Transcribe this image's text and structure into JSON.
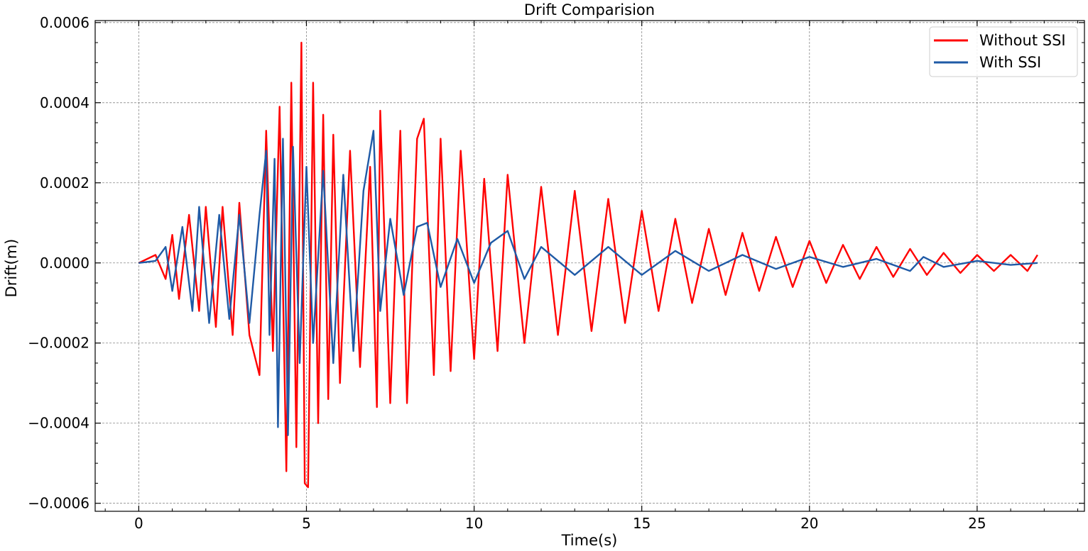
{
  "chart_data": {
    "type": "line",
    "title": "Drift Comparision",
    "xlabel": "Time(s)",
    "ylabel": "Drift(m)",
    "xlim": [
      -1.3,
      28.2
    ],
    "ylim": [
      -0.00062,
      0.000605
    ],
    "xticks": [
      0,
      5,
      10,
      15,
      20,
      25
    ],
    "xtick_labels": [
      "0",
      "5",
      "10",
      "15",
      "20",
      "25"
    ],
    "yticks": [
      0.0006,
      0.0004,
      0.0002,
      0.0,
      -0.0002,
      -0.0004,
      -0.0006
    ],
    "ytick_labels": [
      "0.0006",
      "0.0004",
      "0.0002",
      "0.0000",
      "−0.0002",
      "−0.0004",
      "−0.0006"
    ],
    "grid": true,
    "legend_position": "top-right",
    "series": [
      {
        "name": "Without SSI",
        "color": "#ff0000",
        "x": [
          0,
          0.5,
          0.8,
          1.0,
          1.2,
          1.5,
          1.8,
          2.0,
          2.3,
          2.5,
          2.8,
          3.0,
          3.3,
          3.6,
          3.8,
          4.0,
          4.2,
          4.4,
          4.55,
          4.7,
          4.85,
          4.95,
          5.05,
          5.2,
          5.35,
          5.5,
          5.65,
          5.8,
          6.0,
          6.3,
          6.6,
          6.9,
          7.1,
          7.2,
          7.5,
          7.8,
          8.0,
          8.3,
          8.5,
          8.8,
          9.0,
          9.3,
          9.6,
          10.0,
          10.3,
          10.7,
          11.0,
          11.5,
          12.0,
          12.5,
          13.0,
          13.5,
          14.0,
          14.5,
          15.0,
          15.5,
          16.0,
          16.5,
          17.0,
          17.5,
          18.0,
          18.5,
          19.0,
          19.5,
          20.0,
          20.5,
          21.0,
          21.5,
          22.0,
          22.5,
          23.0,
          23.5,
          24.0,
          24.5,
          25.0,
          25.5,
          26.0,
          26.5,
          26.8
        ],
        "y": [
          0,
          2e-05,
          -4e-05,
          7e-05,
          -9e-05,
          0.00012,
          -0.00012,
          0.00014,
          -0.00016,
          0.00014,
          -0.00018,
          0.00015,
          -0.00018,
          -0.00028,
          0.00033,
          -0.00022,
          0.00039,
          -0.00052,
          0.00045,
          -0.00046,
          0.00055,
          -0.00055,
          -0.00056,
          0.00045,
          -0.0004,
          0.00037,
          -0.00034,
          0.00032,
          -0.0003,
          0.00028,
          -0.00026,
          0.00024,
          -0.00036,
          0.00038,
          -0.00035,
          0.00033,
          -0.00035,
          0.00031,
          0.00036,
          -0.00028,
          0.00031,
          -0.00027,
          0.00028,
          -0.00024,
          0.00021,
          -0.00022,
          0.00022,
          -0.0002,
          0.00019,
          -0.00018,
          0.00018,
          -0.00017,
          0.00016,
          -0.00015,
          0.00013,
          -0.00012,
          0.00011,
          -0.0001,
          8.5e-05,
          -8e-05,
          7.5e-05,
          -7e-05,
          6.5e-05,
          -6e-05,
          5.5e-05,
          -5e-05,
          4.5e-05,
          -4e-05,
          4e-05,
          -3.5e-05,
          3.5e-05,
          -3e-05,
          2.5e-05,
          -2.5e-05,
          2e-05,
          -2e-05,
          2e-05,
          -2e-05,
          2e-05
        ]
      },
      {
        "name": "With SSI",
        "color": "#1f5aa6",
        "x": [
          0,
          0.5,
          0.8,
          1.0,
          1.3,
          1.6,
          1.8,
          2.1,
          2.4,
          2.7,
          3.0,
          3.3,
          3.6,
          3.8,
          3.9,
          4.05,
          4.15,
          4.3,
          4.45,
          4.6,
          4.8,
          5.0,
          5.2,
          5.5,
          5.8,
          6.1,
          6.4,
          6.7,
          7.0,
          7.2,
          7.5,
          7.9,
          8.3,
          8.6,
          9.0,
          9.5,
          10.0,
          10.5,
          11.0,
          11.5,
          12.0,
          13.0,
          14.0,
          15.0,
          16.0,
          17.0,
          18.0,
          19.0,
          20.0,
          21.0,
          22.0,
          23.0,
          23.4,
          24.0,
          25.0,
          26.0,
          26.8
        ],
        "y": [
          0,
          5e-06,
          4e-05,
          -7e-05,
          9e-05,
          -0.00012,
          0.00014,
          -0.00015,
          0.00012,
          -0.00014,
          0.00012,
          -0.00015,
          0.00012,
          0.00028,
          -0.00018,
          0.00026,
          -0.00041,
          0.00031,
          -0.00043,
          0.00029,
          -0.00025,
          0.00024,
          -0.0002,
          0.00023,
          -0.00025,
          0.00022,
          -0.00022,
          0.00018,
          0.00033,
          -0.00012,
          0.00011,
          -8e-05,
          9e-05,
          0.0001,
          -6e-05,
          6e-05,
          -5e-05,
          5e-05,
          8e-05,
          -4e-05,
          4e-05,
          -3e-05,
          4e-05,
          -3e-05,
          3e-05,
          -2e-05,
          2e-05,
          -1.5e-05,
          1.5e-05,
          -1e-05,
          1e-05,
          -2e-05,
          1.5e-05,
          -1e-05,
          5e-06,
          -5e-06,
          0.0
        ]
      }
    ]
  }
}
